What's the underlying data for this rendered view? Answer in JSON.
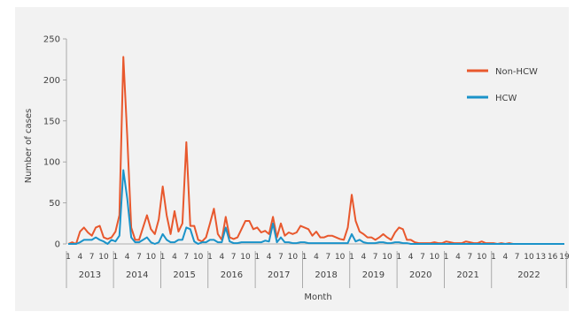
{
  "chart_data": {
    "type": "line",
    "ylabel": "Number of cases",
    "xlabel": "Month",
    "ylim": [
      0,
      250
    ],
    "yticks": [
      0,
      50,
      100,
      150,
      200,
      250
    ],
    "grid": false,
    "legend_position": "top-right",
    "month_labels": [
      "1",
      "4",
      "7",
      "10",
      "1",
      "4",
      "7",
      "10",
      "1",
      "4",
      "7",
      "10",
      "1",
      "4",
      "7",
      "10",
      "1",
      "4",
      "7",
      "10",
      "1",
      "4",
      "7",
      "10",
      "1",
      "4",
      "7",
      "10",
      "1",
      "4",
      "7",
      "10",
      "1",
      "4",
      "7",
      "10",
      "1",
      "4",
      "7",
      "10",
      "13",
      "16",
      "19"
    ],
    "years": [
      {
        "label": "2013",
        "months": 12
      },
      {
        "label": "2014",
        "months": 12
      },
      {
        "label": "2015",
        "months": 12
      },
      {
        "label": "2016",
        "months": 12
      },
      {
        "label": "2017",
        "months": 12
      },
      {
        "label": "2018",
        "months": 12
      },
      {
        "label": "2019",
        "months": 12
      },
      {
        "label": "2020",
        "months": 12
      },
      {
        "label": "2021",
        "months": 12
      },
      {
        "label": "2022",
        "months": 19
      }
    ],
    "series": [
      {
        "name": "Non-HCW",
        "color": "#e8582d",
        "values": [
          0,
          2,
          0,
          15,
          20,
          14,
          10,
          20,
          22,
          8,
          6,
          8,
          15,
          35,
          228,
          130,
          20,
          5,
          5,
          20,
          35,
          18,
          12,
          30,
          70,
          35,
          12,
          40,
          15,
          25,
          124,
          22,
          22,
          5,
          3,
          8,
          25,
          43,
          12,
          5,
          33,
          8,
          6,
          8,
          18,
          28,
          28,
          18,
          20,
          14,
          16,
          12,
          33,
          8,
          25,
          10,
          14,
          12,
          14,
          22,
          20,
          18,
          10,
          15,
          8,
          8,
          10,
          10,
          8,
          6,
          5,
          20,
          60,
          28,
          15,
          12,
          8,
          8,
          5,
          8,
          12,
          8,
          5,
          14,
          20,
          18,
          5,
          5,
          2,
          1,
          1,
          1,
          1,
          2,
          1,
          1,
          3,
          2,
          1,
          1,
          1,
          3,
          2,
          1,
          1,
          3,
          1,
          1,
          1,
          0,
          1,
          0,
          1,
          0,
          0,
          0,
          0,
          0,
          0,
          0,
          0,
          0,
          0,
          0,
          0,
          0,
          0
        ]
      },
      {
        "name": "HCW",
        "color": "#1b93c9",
        "values": [
          0,
          0,
          0,
          2,
          5,
          5,
          5,
          8,
          5,
          3,
          0,
          5,
          3,
          10,
          90,
          55,
          8,
          2,
          2,
          5,
          8,
          2,
          0,
          2,
          12,
          5,
          2,
          2,
          5,
          5,
          20,
          18,
          3,
          0,
          2,
          2,
          5,
          5,
          2,
          2,
          20,
          3,
          1,
          1,
          2,
          2,
          2,
          2,
          2,
          2,
          4,
          3,
          25,
          2,
          8,
          2,
          2,
          1,
          1,
          2,
          2,
          1,
          1,
          1,
          1,
          1,
          1,
          1,
          1,
          1,
          1,
          1,
          12,
          3,
          5,
          2,
          1,
          1,
          1,
          2,
          2,
          1,
          1,
          2,
          2,
          1,
          1,
          0,
          0,
          0,
          0,
          0,
          0,
          0,
          0,
          0,
          0,
          0,
          0,
          0,
          0,
          0,
          0,
          0,
          0,
          0,
          0,
          0,
          0,
          0,
          0,
          0,
          0,
          0,
          0,
          0,
          0,
          0,
          0,
          0,
          0,
          0,
          0,
          0,
          0,
          0,
          0
        ]
      }
    ]
  }
}
